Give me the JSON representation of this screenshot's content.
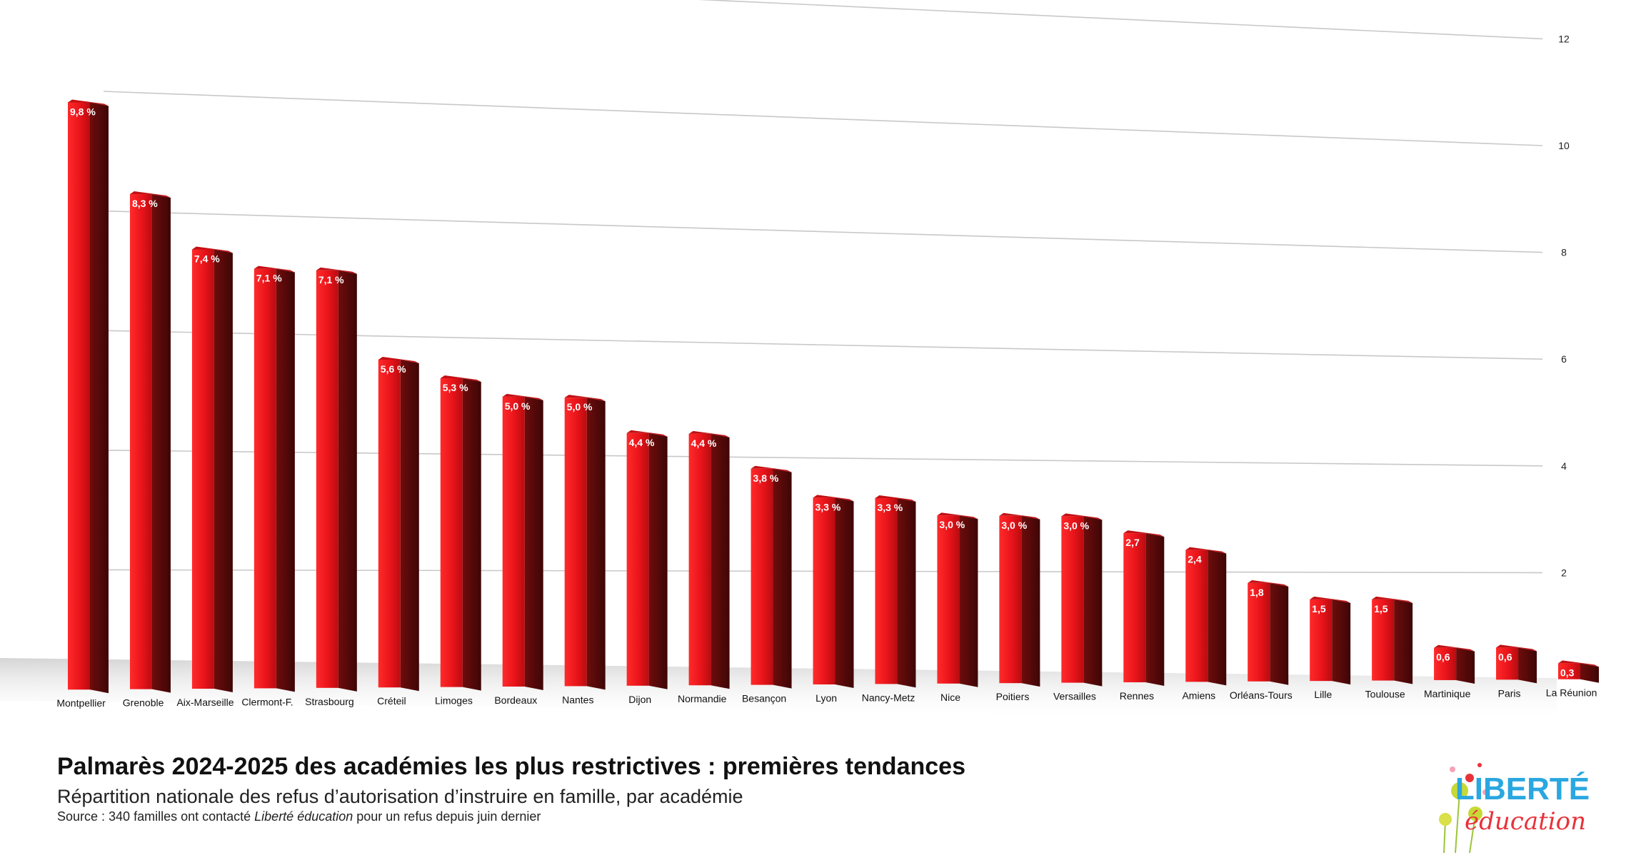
{
  "caption": {
    "title": "Palmarès 2024-2025 des académies les plus restrictives : premières tendances",
    "subtitle": "Répartition nationale des refus d’autorisation d’instruire en famille, par académie",
    "source_prefix": "Source : 340 familles ont contacté ",
    "source_emphasis": "Liberté éducation",
    "source_suffix": " pour un refus depuis juin dernier"
  },
  "logo": {
    "line1": "LIBERTÉ",
    "line2": "éducation"
  },
  "colors": {
    "bar_front": "#e8141a",
    "bar_side": "#5a0a0a",
    "grid": "#c8c8c8",
    "logo_blue": "#2aa7e0",
    "logo_red": "#e8323a",
    "logo_green": "#b8d335"
  },
  "chart_data": {
    "type": "bar",
    "title": "",
    "xlabel": "",
    "ylabel": "",
    "ylim": [
      0,
      12
    ],
    "yticks": [
      2,
      4,
      6,
      8,
      10,
      12
    ],
    "y_axis_position": "right",
    "grid": true,
    "categories": [
      "Montpellier",
      "Grenoble",
      "Aix-Marseille",
      "Clermont-F.",
      "Strasbourg",
      "Créteil",
      "Limoges",
      "Bordeaux",
      "Nantes",
      "Dijon",
      "Normandie",
      "Besançon",
      "Lyon",
      "Nancy-Metz",
      "Nice",
      "Poitiers",
      "Versailles",
      "Rennes",
      "Amiens",
      "Orléans-Tours",
      "Lille",
      "Toulouse",
      "Martinique",
      "Paris",
      "La Réunion"
    ],
    "values": [
      9.8,
      8.3,
      7.4,
      7.1,
      7.1,
      5.6,
      5.3,
      5.0,
      5.0,
      4.4,
      4.4,
      3.8,
      3.3,
      3.3,
      3.0,
      3.0,
      3.0,
      2.7,
      2.4,
      1.8,
      1.5,
      1.5,
      0.6,
      0.6,
      0.3
    ],
    "data_labels": [
      "9,8 %",
      "8,3 %",
      "7,4 %",
      "7,1 %",
      "7,1 %",
      "5,6 %",
      "5,3 %",
      "5,0 %",
      "5,0 %",
      "4,4 %",
      "4,4 %",
      "3,8 %",
      "3,3 %",
      "3,3 %",
      "3,0 %",
      "3,0 %",
      "3,0 %",
      "2,7",
      "2,4",
      "1,8",
      "1,5",
      "1,5",
      "0,6",
      "0,6",
      "0,3"
    ]
  }
}
